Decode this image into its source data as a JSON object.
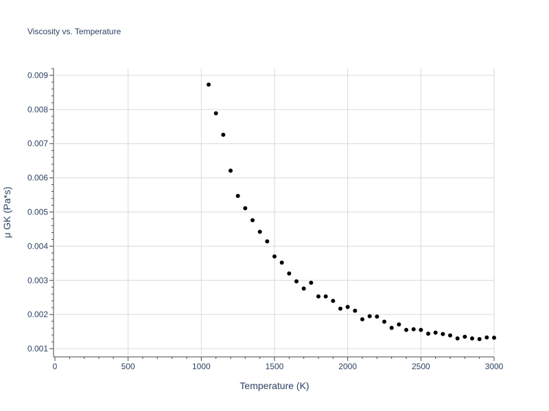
{
  "chart_data": {
    "type": "scatter",
    "title": "Viscosity vs. Temperature",
    "xlabel": "Temperature (K)",
    "ylabel": "μ GK (Pa*s)",
    "xlim": [
      0,
      3000
    ],
    "ylim": [
      0.0008,
      0.0092
    ],
    "xticks": [
      0,
      500,
      1000,
      1500,
      2000,
      2500,
      3000
    ],
    "xtick_labels": [
      "0",
      "500",
      "1000",
      "1500",
      "2000",
      "2500",
      "3000"
    ],
    "yticks": [
      0.001,
      0.002,
      0.003,
      0.004,
      0.005,
      0.006,
      0.007,
      0.008,
      0.009
    ],
    "ytick_labels": [
      "0.001",
      "0.002",
      "0.003",
      "0.004",
      "0.005",
      "0.006",
      "0.007",
      "0.008",
      "0.009"
    ],
    "grid": true,
    "marker_color": "#000000",
    "series": [
      {
        "x": [
          1050,
          1100,
          1150,
          1200,
          1250,
          1300,
          1350,
          1400,
          1450,
          1500,
          1550,
          1600,
          1650,
          1700,
          1750,
          1800,
          1850,
          1900,
          1950,
          2000,
          2050,
          2100,
          2150,
          2200,
          2250,
          2300,
          2350,
          2400,
          2450,
          2500,
          2550,
          2600,
          2650,
          2700,
          2750,
          2800,
          2850,
          2900,
          2950,
          3000
        ],
        "y": [
          0.00873,
          0.00789,
          0.00726,
          0.00621,
          0.00547,
          0.00511,
          0.00476,
          0.00442,
          0.00414,
          0.0037,
          0.00352,
          0.0032,
          0.00297,
          0.00276,
          0.00293,
          0.00253,
          0.00253,
          0.0024,
          0.00217,
          0.00222,
          0.00211,
          0.00186,
          0.00195,
          0.00194,
          0.00179,
          0.00161,
          0.00171,
          0.00155,
          0.00157,
          0.00155,
          0.00144,
          0.00147,
          0.00143,
          0.00139,
          0.0013,
          0.00135,
          0.0013,
          0.00128,
          0.00133,
          0.00132
        ]
      }
    ]
  }
}
